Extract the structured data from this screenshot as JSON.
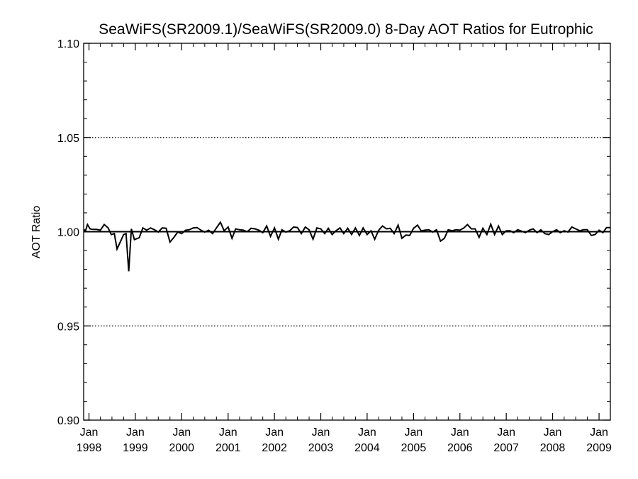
{
  "chart_data": {
    "type": "line",
    "title": "SeaWiFS(SR2009.1)/SeaWiFS(SR2009.0) 8-Day AOT Ratios for Eutrophic",
    "xlabel": "",
    "ylabel": "AOT Ratio",
    "ylim": [
      0.9,
      1.1
    ],
    "xlim": [
      "1997-11-20",
      "2009-03-31"
    ],
    "grid": "dotted horizontal at major y ticks",
    "reference_line": 1.0,
    "y_ticks": [
      {
        "value": 0.9,
        "label": "0.90"
      },
      {
        "value": 0.95,
        "label": "0.95"
      },
      {
        "value": 1.0,
        "label": "1.00"
      },
      {
        "value": 1.05,
        "label": "1.05"
      },
      {
        "value": 1.1,
        "label": "1.10"
      }
    ],
    "x_ticks": [
      {
        "date": "1998-01-01",
        "month": "Jan",
        "year": "1998"
      },
      {
        "date": "1999-01-01",
        "month": "Jan",
        "year": "1999"
      },
      {
        "date": "2000-01-01",
        "month": "Jan",
        "year": "2000"
      },
      {
        "date": "2001-01-01",
        "month": "Jan",
        "year": "2001"
      },
      {
        "date": "2002-01-01",
        "month": "Jan",
        "year": "2002"
      },
      {
        "date": "2003-01-01",
        "month": "Jan",
        "year": "2003"
      },
      {
        "date": "2004-01-01",
        "month": "Jan",
        "year": "2004"
      },
      {
        "date": "2005-01-01",
        "month": "Jan",
        "year": "2005"
      },
      {
        "date": "2006-01-01",
        "month": "Jan",
        "year": "2006"
      },
      {
        "date": "2007-01-01",
        "month": "Jan",
        "year": "2007"
      },
      {
        "date": "2008-01-01",
        "month": "Jan",
        "year": "2008"
      },
      {
        "date": "2009-01-01",
        "month": "Jan",
        "year": "2009"
      }
    ],
    "series": [
      {
        "color": "#000000",
        "points": [
          [
            "1997-11-20",
            1.0012
          ],
          [
            "1997-12-05",
            1.0005
          ],
          [
            "1997-12-20",
            1.0038
          ],
          [
            "1998-01-10",
            1.0015
          ],
          [
            "1998-02-01",
            1.0012
          ],
          [
            "1998-03-01",
            1.0012
          ],
          [
            "1998-04-01",
            1.0008
          ],
          [
            "1998-05-01",
            1.0038
          ],
          [
            "1998-06-01",
            1.002
          ],
          [
            "1998-06-25",
            0.9985
          ],
          [
            "1998-07-20",
            0.999
          ],
          [
            "1998-08-10",
            0.9908
          ],
          [
            "1998-09-01",
            0.994
          ],
          [
            "1998-10-01",
            0.9985
          ],
          [
            "1998-10-20",
            0.999
          ],
          [
            "1998-11-10",
            0.979
          ],
          [
            "1998-12-01",
            1.0015
          ],
          [
            "1998-12-25",
            0.9958
          ],
          [
            "1999-02-01",
            0.9968
          ],
          [
            "1999-03-01",
            1.002
          ],
          [
            "1999-04-01",
            1.0008
          ],
          [
            "1999-05-01",
            1.002
          ],
          [
            "1999-06-01",
            1.001
          ],
          [
            "1999-07-01",
            0.9998
          ],
          [
            "1999-08-01",
            1.002
          ],
          [
            "1999-09-01",
            1.0018
          ],
          [
            "1999-10-01",
            0.9945
          ],
          [
            "1999-11-01",
            0.997
          ],
          [
            "1999-12-01",
            0.9998
          ],
          [
            "2000-01-01",
            0.999
          ],
          [
            "2000-02-01",
            1.0008
          ],
          [
            "2000-03-01",
            1.001
          ],
          [
            "2000-04-01",
            1.002
          ],
          [
            "2000-05-01",
            1.0022
          ],
          [
            "2000-06-01",
            1.0008
          ],
          [
            "2000-07-01",
            0.9998
          ],
          [
            "2000-08-01",
            1.0008
          ],
          [
            "2000-09-01",
            0.999
          ],
          [
            "2000-10-01",
            1.002
          ],
          [
            "2000-11-01",
            1.005
          ],
          [
            "2000-12-01",
            1.0005
          ],
          [
            "2001-01-01",
            1.0025
          ],
          [
            "2001-02-01",
            0.9965
          ],
          [
            "2001-03-01",
            1.0015
          ],
          [
            "2001-04-01",
            1.001
          ],
          [
            "2001-05-01",
            1.0008
          ],
          [
            "2001-06-01",
            1.0
          ],
          [
            "2001-07-01",
            1.0018
          ],
          [
            "2001-08-01",
            1.0015
          ],
          [
            "2001-09-01",
            1.0008
          ],
          [
            "2001-10-01",
            0.9995
          ],
          [
            "2001-11-01",
            1.003
          ],
          [
            "2001-12-01",
            0.9975
          ],
          [
            "2002-01-01",
            1.002
          ],
          [
            "2002-02-01",
            0.996
          ],
          [
            "2002-03-01",
            1.001
          ],
          [
            "2002-04-01",
            0.9998
          ],
          [
            "2002-05-01",
            1.0005
          ],
          [
            "2002-06-01",
            1.0025
          ],
          [
            "2002-07-01",
            1.0022
          ],
          [
            "2002-08-01",
            0.999
          ],
          [
            "2002-09-01",
            1.0025
          ],
          [
            "2002-10-01",
            1.001
          ],
          [
            "2002-11-01",
            0.996
          ],
          [
            "2002-12-01",
            1.002
          ],
          [
            "2003-01-01",
            1.0015
          ],
          [
            "2003-02-01",
            0.999
          ],
          [
            "2003-03-01",
            1.0018
          ],
          [
            "2003-04-01",
            0.9985
          ],
          [
            "2003-05-01",
            1.0005
          ],
          [
            "2003-06-01",
            1.002
          ],
          [
            "2003-07-01",
            0.999
          ],
          [
            "2003-08-01",
            1.0018
          ],
          [
            "2003-09-01",
            0.9985
          ],
          [
            "2003-10-01",
            1.002
          ],
          [
            "2003-11-01",
            0.998
          ],
          [
            "2003-12-01",
            1.002
          ],
          [
            "2004-01-01",
            0.9985
          ],
          [
            "2004-02-01",
            1.0005
          ],
          [
            "2004-03-01",
            0.996
          ],
          [
            "2004-04-01",
            1.0008
          ],
          [
            "2004-05-01",
            1.003
          ],
          [
            "2004-06-01",
            1.0015
          ],
          [
            "2004-07-01",
            1.0018
          ],
          [
            "2004-08-01",
            0.999
          ],
          [
            "2004-09-01",
            1.0035
          ],
          [
            "2004-10-01",
            0.9965
          ],
          [
            "2004-11-01",
            0.9982
          ],
          [
            "2004-12-01",
            0.998
          ],
          [
            "2005-01-01",
            1.0018
          ],
          [
            "2005-02-01",
            1.0035
          ],
          [
            "2005-03-01",
            1.0005
          ],
          [
            "2005-04-01",
            1.0008
          ],
          [
            "2005-05-01",
            1.001
          ],
          [
            "2005-06-01",
            0.9998
          ],
          [
            "2005-07-01",
            1.001
          ],
          [
            "2005-08-01",
            0.995
          ],
          [
            "2005-09-01",
            0.9965
          ],
          [
            "2005-10-01",
            1.001
          ],
          [
            "2005-11-01",
            1.0005
          ],
          [
            "2005-12-01",
            1.001
          ],
          [
            "2006-01-01",
            1.0008
          ],
          [
            "2006-02-01",
            1.002
          ],
          [
            "2006-03-01",
            1.0038
          ],
          [
            "2006-04-01",
            1.0015
          ],
          [
            "2006-05-01",
            1.0015
          ],
          [
            "2006-06-01",
            0.997
          ],
          [
            "2006-07-01",
            1.0018
          ],
          [
            "2006-08-01",
            0.9985
          ],
          [
            "2006-09-01",
            1.004
          ],
          [
            "2006-10-01",
            0.9985
          ],
          [
            "2006-11-01",
            1.003
          ],
          [
            "2006-12-01",
            0.9985
          ],
          [
            "2007-01-01",
            1.0005
          ],
          [
            "2007-02-01",
            1.0005
          ],
          [
            "2007-03-01",
            0.9995
          ],
          [
            "2007-04-01",
            1.001
          ],
          [
            "2007-05-01",
            1.0003
          ],
          [
            "2007-06-01",
            0.9995
          ],
          [
            "2007-07-01",
            1.0008
          ],
          [
            "2007-08-01",
            1.0015
          ],
          [
            "2007-09-01",
            0.9995
          ],
          [
            "2007-10-01",
            1.001
          ],
          [
            "2007-11-01",
            0.999
          ],
          [
            "2007-12-01",
            0.9985
          ],
          [
            "2008-01-01",
            1.0
          ],
          [
            "2008-02-01",
            1.001
          ],
          [
            "2008-03-01",
            0.9995
          ],
          [
            "2008-04-01",
            1.0005
          ],
          [
            "2008-05-01",
            0.9998
          ],
          [
            "2008-06-01",
            1.0025
          ],
          [
            "2008-07-01",
            1.0015
          ],
          [
            "2008-08-01",
            1.0005
          ],
          [
            "2008-09-01",
            1.001
          ],
          [
            "2008-10-01",
            1.001
          ],
          [
            "2008-11-01",
            0.998
          ],
          [
            "2008-12-01",
            0.9985
          ],
          [
            "2009-01-01",
            1.0008
          ],
          [
            "2009-02-01",
            0.9995
          ],
          [
            "2009-03-01",
            1.0022
          ],
          [
            "2009-03-31",
            1.0022
          ]
        ]
      }
    ]
  }
}
